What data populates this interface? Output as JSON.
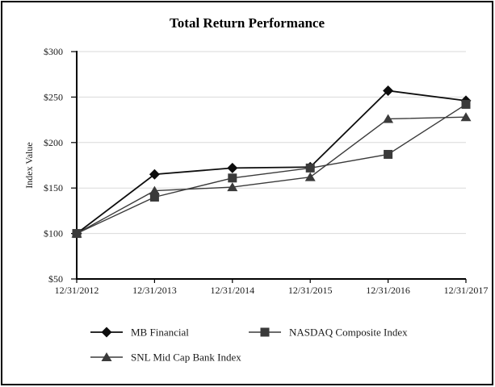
{
  "chart_data": {
    "type": "line",
    "title": "Total Return Performance",
    "xlabel": "",
    "ylabel": "Index Value",
    "x": [
      "12/31/2012",
      "12/31/2013",
      "12/31/2014",
      "12/31/2015",
      "12/31/2016",
      "12/31/2017"
    ],
    "series": [
      {
        "name": "MB Financial",
        "marker": "diamond",
        "color": "#0d0d0d",
        "line_width": 1.8,
        "values": [
          100,
          165,
          172,
          173,
          257,
          246
        ]
      },
      {
        "name": "NASDAQ Composite Index",
        "marker": "square",
        "color": "#3a3a3a",
        "line_width": 1.4,
        "values": [
          100,
          140,
          161,
          172,
          187,
          242
        ]
      },
      {
        "name": "SNL Mid Cap Bank Index",
        "marker": "triangle",
        "color": "#3a3a3a",
        "line_width": 1.4,
        "values": [
          100,
          147,
          151,
          162,
          226,
          228
        ]
      }
    ],
    "ylim": [
      50,
      300
    ],
    "ytick_step": 50,
    "ytick_labels": [
      "$50",
      "$100",
      "$150",
      "$200",
      "$250",
      "$300"
    ],
    "grid": true,
    "legend_position": "bottom"
  },
  "colors": {
    "background": "#ffffff",
    "border": "#000000",
    "axis": "#000000",
    "gridline": "#d9d9d9",
    "text": "#1a1a1a"
  }
}
